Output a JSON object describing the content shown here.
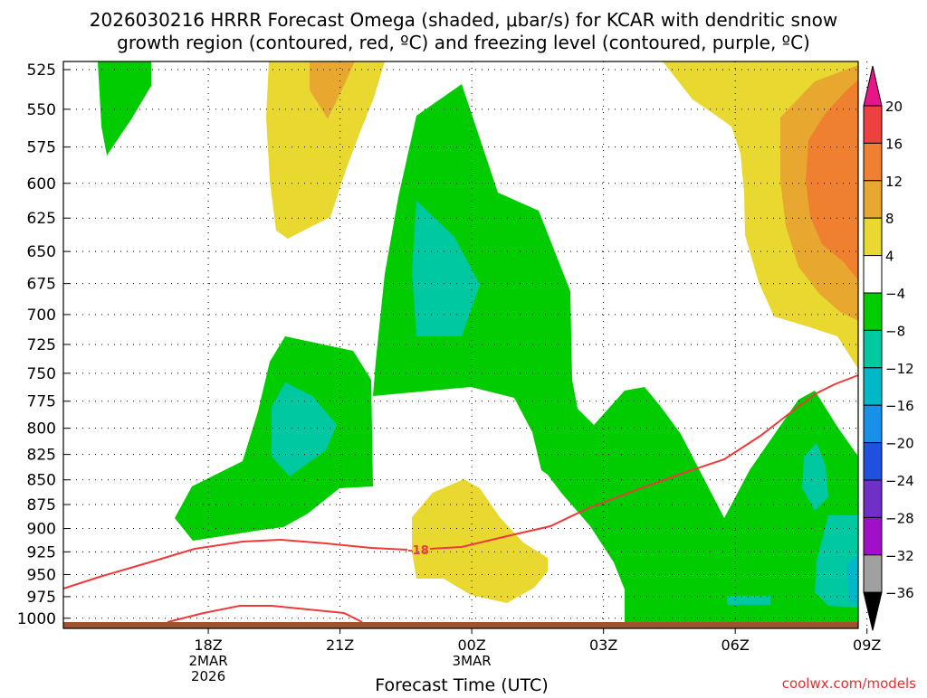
{
  "title_line1": "2026030216 HRRR Forecast Omega (shaded, μbar/s) for KCAR with dendritic snow",
  "title_line2": "growth region (contoured, red, ºC) and freezing level (contoured, purple, ºC)",
  "xlabel": "Forecast Time (UTC)",
  "credit": "coolwx.com/models",
  "chart_data": {
    "type": "time-height contour",
    "y_axis": {
      "label": "",
      "scale": "log-pressure",
      "unit": "hPa",
      "ticks": [
        "525",
        "550",
        "575",
        "600",
        "625",
        "650",
        "675",
        "700",
        "725",
        "750",
        "775",
        "800",
        "825",
        "850",
        "875",
        "900",
        "925",
        "950",
        "975",
        "1000"
      ],
      "range": [
        1012,
        520
      ],
      "grid": "dotted"
    },
    "x_axis": {
      "unit": "UTC",
      "range_hours_from_18Z": [
        -3.3,
        14.8
      ],
      "ticks": [
        {
          "hour": 0,
          "label": "18Z",
          "sub": [
            "2MAR",
            "2026"
          ]
        },
        {
          "hour": 3,
          "label": "21Z",
          "sub": []
        },
        {
          "hour": 6,
          "label": "00Z",
          "sub": [
            "3MAR"
          ]
        },
        {
          "hour": 9,
          "label": "03Z",
          "sub": []
        },
        {
          "hour": 12,
          "label": "06Z",
          "sub": []
        },
        {
          "hour": 15,
          "label": "09Z",
          "sub": []
        }
      ]
    },
    "colorbar": {
      "labels": [
        "20",
        "16",
        "12",
        "8",
        "4",
        "−4",
        "−8",
        "−12",
        "−16",
        "−20",
        "−24",
        "−28",
        "−32",
        "−36"
      ],
      "colors": {
        "gt_20": "#e8158a",
        "16_20": "#ee4040",
        "12_16": "#ee8030",
        "8_12": "#e8a830",
        "4_8": "#e8d830",
        "m4_4": "#ffffff",
        "m8_m4": "#00cc00",
        "m12_m8": "#00c8a0",
        "m16_m12": "#00b8c8",
        "m20_m16": "#1890e8",
        "m24_m20": "#2050e0",
        "m28_m24": "#7030c8",
        "m32_m28": "#a010c8",
        "m36_m32": "#a0a0a0",
        "lt_m36": "#000000"
      }
    },
    "dgz_contour": {
      "label": "-18",
      "color": "#ee3a3a"
    },
    "ground_color": "#a0522d"
  }
}
